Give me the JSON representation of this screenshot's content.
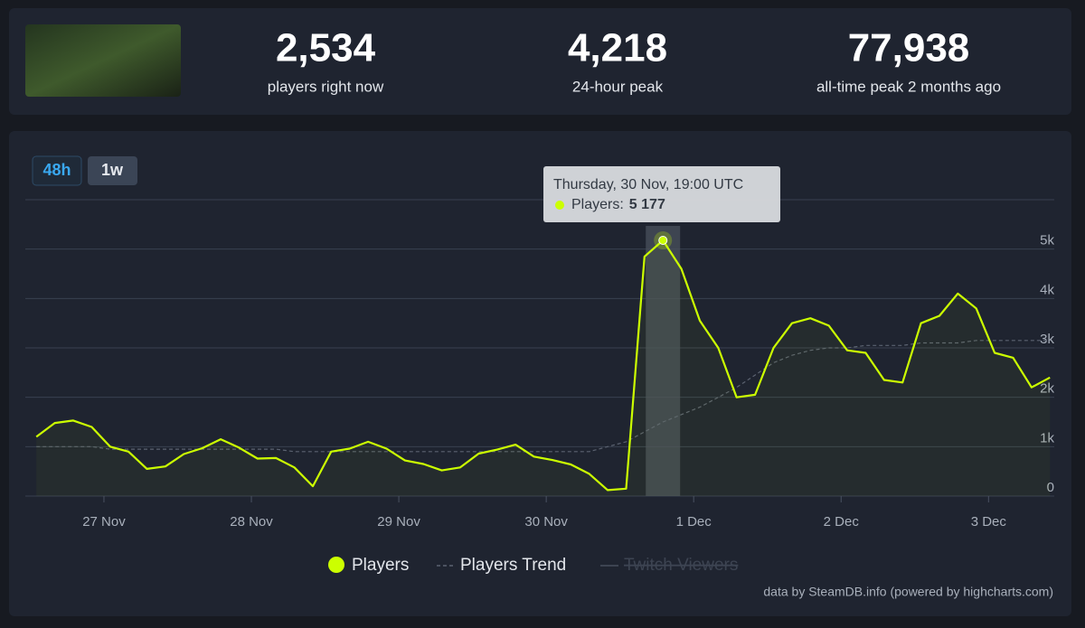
{
  "header": {
    "stats": [
      {
        "value": "2,534",
        "label": "players right now"
      },
      {
        "value": "4,218",
        "label": "24-hour peak"
      },
      {
        "value": "77,938",
        "label": "all-time peak 2 months ago"
      }
    ]
  },
  "range_buttons": [
    "48h",
    "1w"
  ],
  "chart_data": {
    "type": "line",
    "x": [
      -11,
      -8,
      -5,
      -2,
      1,
      4,
      7,
      10,
      13,
      16,
      19,
      22,
      25,
      28,
      31,
      34,
      37,
      40,
      43,
      46,
      49,
      52,
      55,
      58,
      61,
      64,
      67,
      70,
      73,
      76,
      79,
      82,
      85,
      88,
      91,
      94,
      97,
      100,
      103,
      106,
      109,
      112,
      115,
      118,
      121,
      124,
      127,
      130,
      133,
      136,
      139,
      142,
      145,
      148,
      151,
      154
    ],
    "xlim": [
      -12.8,
      154.7
    ],
    "xticks": [
      {
        "value": 0,
        "label": "27 Nov"
      },
      {
        "value": 24,
        "label": "28 Nov"
      },
      {
        "value": 48,
        "label": "29 Nov"
      },
      {
        "value": 72,
        "label": "30 Nov"
      },
      {
        "value": 96,
        "label": "1 Dec"
      },
      {
        "value": 120,
        "label": "2 Dec"
      },
      {
        "value": 144,
        "label": "3 Dec"
      }
    ],
    "ylim": [
      0,
      6000
    ],
    "yticks": [
      0,
      {
        "value": 1000,
        "label": "1k"
      },
      {
        "value": 2000,
        "label": "2k"
      },
      {
        "value": 3000,
        "label": "3k"
      },
      {
        "value": 4000,
        "label": "4k"
      },
      {
        "value": 5000,
        "label": "5k"
      }
    ],
    "grid": true,
    "series": [
      {
        "name": "Players",
        "color": "#ccff00",
        "values": [
          1200,
          1480,
          1530,
          1400,
          1000,
          900,
          550,
          600,
          850,
          970,
          1150,
          980,
          760,
          770,
          580,
          200,
          900,
          960,
          1100,
          960,
          720,
          650,
          520,
          580,
          860,
          940,
          1040,
          800,
          730,
          640,
          450,
          120,
          150,
          4850,
          5177,
          4600,
          3550,
          3000,
          2000,
          2050,
          3000,
          3500,
          3600,
          3450,
          2950,
          2900,
          2350,
          2300,
          3500,
          3650,
          4100,
          3800,
          2900,
          2800,
          2200,
          2400
        ],
        "value_labels": [
          null,
          null,
          null,
          null,
          null,
          null,
          null,
          null,
          null,
          null,
          null,
          null,
          null,
          null,
          null,
          null,
          null,
          null,
          null,
          null,
          null,
          null,
          null,
          null,
          null,
          null,
          null,
          null,
          null,
          null,
          null,
          null,
          null,
          null,
          "5 177",
          null,
          null,
          null,
          null,
          null,
          null,
          null,
          null,
          null,
          null,
          null,
          null,
          null,
          null,
          null,
          null,
          null,
          null,
          null,
          null,
          null
        ]
      },
      {
        "name": "Players Trend",
        "color": "#5b6270",
        "dashed": true,
        "values": [
          1000,
          1000,
          1000,
          1000,
          950,
          950,
          950,
          950,
          950,
          950,
          950,
          950,
          950,
          950,
          900,
          900,
          900,
          900,
          900,
          900,
          900,
          900,
          900,
          900,
          900,
          900,
          900,
          900,
          900,
          900,
          900,
          1000,
          1100,
          1300,
          1500,
          1650,
          1800,
          2000,
          2200,
          2450,
          2700,
          2850,
          2950,
          3000,
          3000,
          3050,
          3050,
          3050,
          3100,
          3100,
          3100,
          3150,
          3150,
          3150,
          3150,
          3150
        ]
      }
    ],
    "hidden_series": {
      "name": "Twitch Viewers",
      "visible": false
    },
    "tooltip": {
      "title": "Thursday, 30 Nov, 19:00 UTC",
      "label": "Players:",
      "point": 34
    },
    "credits": "data by SteamDB.info (powered by highcharts.com)"
  }
}
